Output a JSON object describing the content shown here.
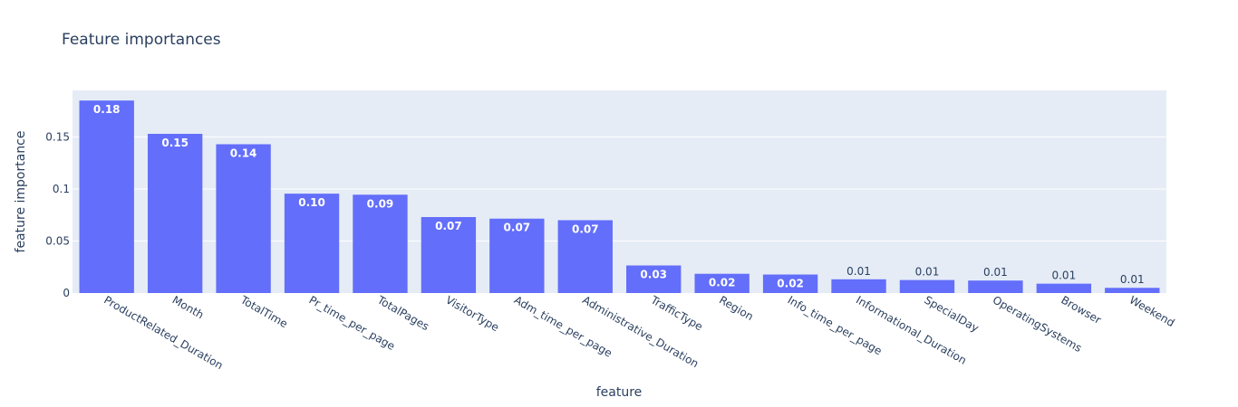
{
  "chart_data": {
    "type": "bar",
    "title": "Feature importances",
    "xlabel": "feature",
    "ylabel": "feature importance",
    "categories": [
      "ProductRelated_Duration",
      "Month",
      "TotalTime",
      "Pr_time_per_page",
      "TotalPages",
      "VisitorType",
      "Adm_time_per_page",
      "Administrative_Duration",
      "TrafficType",
      "Region",
      "Info_time_per_page",
      "Informational_Duration",
      "SpecialDay",
      "OperatingSystems",
      "Browser",
      "Weekend"
    ],
    "values": [
      0.185,
      0.153,
      0.143,
      0.0955,
      0.0945,
      0.073,
      0.0715,
      0.07,
      0.0265,
      0.0185,
      0.0178,
      0.0132,
      0.0125,
      0.012,
      0.009,
      0.005
    ],
    "data_labels": [
      "0.18",
      "0.15",
      "0.14",
      "0.10",
      "0.09",
      "0.07",
      "0.07",
      "0.07",
      "0.03",
      "0.02",
      "0.02",
      "0.01",
      "0.01",
      "0.01",
      "0.01",
      "0.01"
    ],
    "yticks": [
      0,
      0.05,
      0.1,
      0.15
    ],
    "ytick_labels": [
      "0",
      "0.05",
      "0.1",
      "0.15"
    ],
    "ylim": [
      0,
      0.1947
    ],
    "grid": true,
    "bar_color": "#636efa",
    "plot_background": "#e5ecf6",
    "text_color": "#2a3f5f"
  }
}
